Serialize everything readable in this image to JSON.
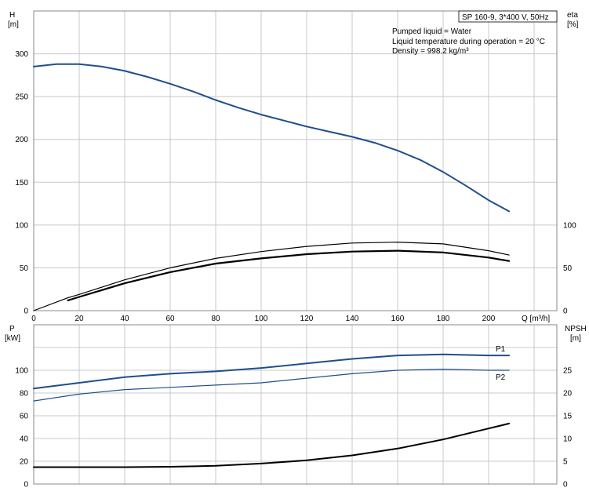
{
  "colors": {
    "head": "#1f4e8c",
    "power": "#1f4e8c",
    "eta": "#000000",
    "npsh": "#000000",
    "grid": "#c8c8c8"
  },
  "info": {
    "pump": "SP 160-9, 3*400 V, 50Hz",
    "liquid": "Pumped liquid = Water",
    "temp": "Liquid temperature during operation = 20 °C",
    "density": "Density = 998.2 kg/m³"
  },
  "chart_data": [
    {
      "type": "line",
      "xlabel": "Q [m³/h]",
      "xlim": [
        0,
        230
      ],
      "xticks": [
        0,
        20,
        40,
        60,
        80,
        100,
        120,
        140,
        160,
        180,
        200
      ],
      "ylabel": "H",
      "yunit": "[m]",
      "ylim": [
        0,
        350
      ],
      "yticks": [
        0,
        50,
        100,
        150,
        200,
        250,
        300
      ],
      "y2label": "eta",
      "y2unit": "[%]",
      "y2lim": [
        0,
        350
      ],
      "y2ticks": [
        0,
        50,
        100
      ],
      "grid": true,
      "series": [
        {
          "key": "head",
          "axis": "left",
          "x": [
            0,
            10,
            20,
            30,
            40,
            50,
            60,
            70,
            80,
            90,
            100,
            110,
            120,
            130,
            140,
            150,
            160,
            170,
            180,
            190,
            200,
            209
          ],
          "y": [
            285,
            288,
            288,
            285,
            280,
            273,
            265,
            256,
            246,
            237,
            229,
            222,
            215,
            209,
            203,
            196,
            187,
            176,
            162,
            146,
            129,
            116
          ]
        },
        {
          "key": "eta_pump",
          "axis": "right",
          "x": [
            0,
            15,
            20,
            40,
            60,
            80,
            100,
            120,
            140,
            160,
            180,
            200,
            209
          ],
          "y": [
            0,
            15,
            19,
            36,
            50,
            61,
            69,
            75,
            79,
            80,
            78,
            70,
            65
          ]
        },
        {
          "key": "eta_total",
          "axis": "right",
          "x": [
            15,
            20,
            40,
            60,
            80,
            100,
            120,
            140,
            160,
            180,
            200,
            209
          ],
          "y": [
            12,
            16,
            32,
            45,
            55,
            61,
            66,
            69,
            70,
            68,
            62,
            58
          ]
        }
      ]
    },
    {
      "type": "line",
      "xlim": [
        0,
        230
      ],
      "ylabel": "P",
      "yunit": "[kW]",
      "ylim": [
        0,
        140
      ],
      "yticks": [
        0,
        20,
        40,
        60,
        80,
        100
      ],
      "y2label": "NPSH",
      "y2unit": "[m]",
      "y2lim": [
        0,
        35
      ],
      "y2ticks": [
        0,
        5,
        10,
        15,
        20,
        25
      ],
      "grid": true,
      "series": [
        {
          "name": "P1",
          "axis": "left",
          "x": [
            0,
            20,
            40,
            60,
            80,
            100,
            120,
            140,
            160,
            180,
            200,
            209
          ],
          "y": [
            84,
            89,
            94,
            97,
            99,
            102,
            106,
            110,
            113,
            114,
            113,
            113
          ]
        },
        {
          "name": "P2",
          "axis": "left",
          "x": [
            0,
            20,
            40,
            60,
            80,
            100,
            120,
            140,
            160,
            180,
            200,
            209
          ],
          "y": [
            73,
            79,
            83,
            85,
            87,
            89,
            93,
            97,
            100,
            101,
            100,
            100
          ]
        },
        {
          "key": "npsh",
          "axis": "right",
          "x": [
            0,
            20,
            40,
            60,
            80,
            100,
            120,
            140,
            160,
            180,
            200,
            209
          ],
          "y": [
            3.7,
            3.7,
            3.7,
            3.8,
            4.0,
            4.5,
            5.2,
            6.3,
            7.8,
            9.8,
            12.2,
            13.3
          ]
        }
      ]
    }
  ]
}
